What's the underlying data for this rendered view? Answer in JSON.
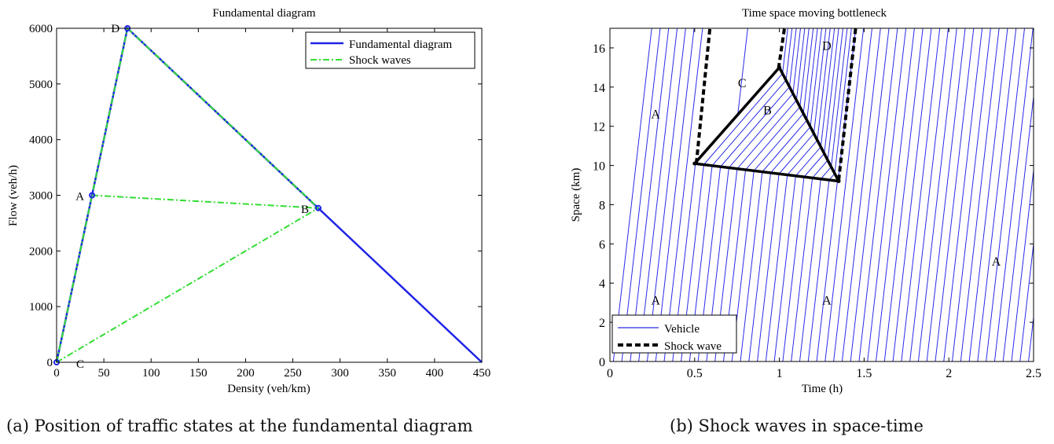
{
  "captions": {
    "left": "(a) Position of traffic states at the fundamental diagram",
    "right": "(b) Shock waves in space-time"
  },
  "colors": {
    "fundamental": "#1f24e6",
    "shock_fd": "#33dd33",
    "vehicle": "#2a2ae8",
    "shock_ts": "#000000"
  },
  "chart_data": [
    {
      "type": "line",
      "title": "Fundamental diagram",
      "xlabel": "Density (veh/km)",
      "ylabel": "Flow (veh/h)",
      "xlim": [
        0,
        450
      ],
      "ylim": [
        0,
        6000
      ],
      "xticks": [
        0,
        50,
        100,
        150,
        200,
        250,
        300,
        350,
        400,
        450
      ],
      "yticks": [
        0,
        1000,
        2000,
        3000,
        4000,
        5000,
        6000
      ],
      "grid": false,
      "legend_position": "top-right",
      "series": [
        {
          "name": "Fundamental diagram",
          "style": "solid",
          "x": [
            0,
            75,
            450
          ],
          "y": [
            0,
            6000,
            0
          ]
        },
        {
          "name": "Shock waves",
          "style": "dash-dot",
          "segments": [
            {
              "x": [
                0,
                75
              ],
              "y": [
                0,
                6000
              ]
            },
            {
              "x": [
                75,
                277
              ],
              "y": [
                6000,
                2770
              ]
            },
            {
              "x": [
                37.5,
                277
              ],
              "y": [
                3000,
                2770
              ]
            },
            {
              "x": [
                0,
                277
              ],
              "y": [
                0,
                2770
              ]
            }
          ]
        }
      ],
      "points": [
        {
          "label": "A",
          "x": 37.5,
          "y": 3000
        },
        {
          "label": "B",
          "x": 277,
          "y": 2770
        },
        {
          "label": "C",
          "x": 0,
          "y": 0
        },
        {
          "label": "D",
          "x": 75,
          "y": 6000
        }
      ]
    },
    {
      "type": "line",
      "title": "Time space moving bottleneck",
      "xlabel": "Time (h)",
      "ylabel": "Space (km)",
      "xlim": [
        0,
        2.5
      ],
      "ylim": [
        0,
        17
      ],
      "xticks": [
        0,
        0.5,
        1,
        1.5,
        2,
        2.5
      ],
      "yticks": [
        0,
        2,
        4,
        6,
        8,
        10,
        12,
        14,
        16
      ],
      "grid": false,
      "legend_position": "bottom-left",
      "series": [
        {
          "name": "Vehicle",
          "style": "solid",
          "speed_kmh": 75,
          "headway_h": 0.05,
          "first_start": 0.02,
          "count": 50,
          "slow_speed_kmh": 10
        },
        {
          "name": "Shock wave",
          "style": "dashed",
          "segments": [
            {
              "x": [
                0.51,
                0.59
              ],
              "y": [
                10.1,
                17
              ]
            },
            {
              "x": [
                0.995,
                1.03
              ],
              "y": [
                14.95,
                17
              ]
            },
            {
              "x": [
                1.35,
                1.45
              ],
              "y": [
                9.25,
                17
              ]
            }
          ]
        }
      ],
      "region_B": {
        "x": [
          0.5,
          1.0,
          1.35
        ],
        "y": [
          10.1,
          15.0,
          9.2
        ]
      },
      "region_labels": [
        {
          "label": "A",
          "x": 0.27,
          "y": 12.4
        },
        {
          "label": "C",
          "x": 0.78,
          "y": 14.0
        },
        {
          "label": "B",
          "x": 0.93,
          "y": 12.6
        },
        {
          "label": "D",
          "x": 1.28,
          "y": 15.9
        },
        {
          "label": "A",
          "x": 0.27,
          "y": 2.9
        },
        {
          "label": "A",
          "x": 1.28,
          "y": 2.9
        },
        {
          "label": "A",
          "x": 2.28,
          "y": 4.9
        }
      ]
    }
  ]
}
